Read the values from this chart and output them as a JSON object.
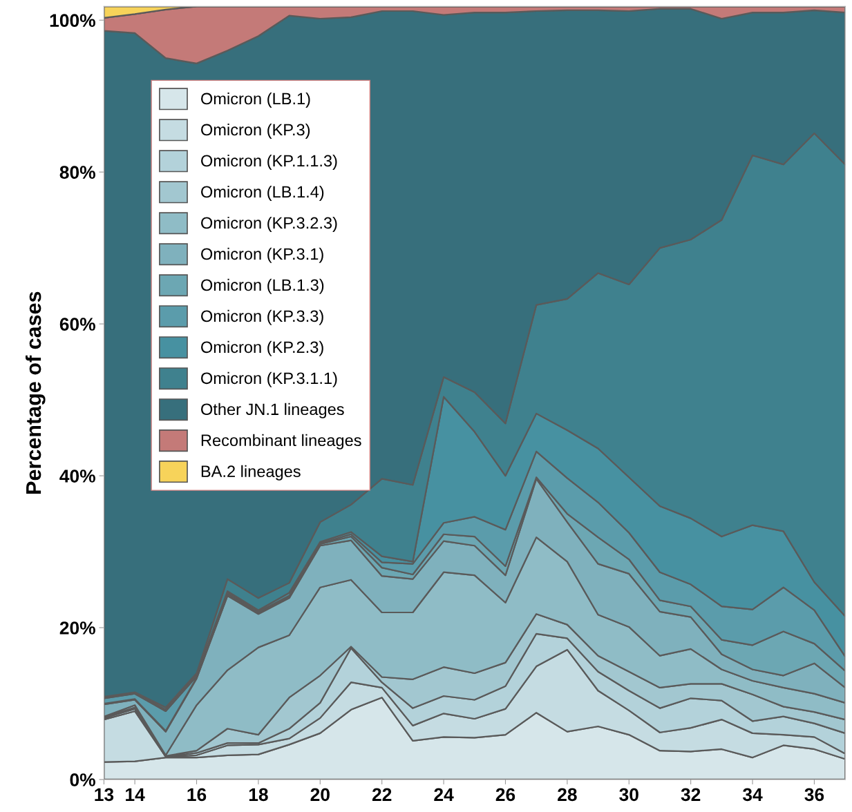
{
  "chart_data": {
    "type": "area",
    "stacked": true,
    "ylabel": "Percentage of cases",
    "x": [
      13,
      14,
      15,
      16,
      17,
      18,
      19,
      20,
      21,
      22,
      23,
      24,
      25,
      26,
      27,
      28,
      29,
      30,
      31,
      32,
      33,
      34,
      35,
      36,
      37
    ],
    "xlim": [
      13,
      37
    ],
    "xticks": [
      13,
      14,
      16,
      18,
      20,
      22,
      24,
      26,
      28,
      30,
      32,
      34,
      36
    ],
    "ylim": [
      0,
      101.8
    ],
    "yticks": [
      {
        "value": 0,
        "label": "0%"
      },
      {
        "value": 20,
        "label": "20%"
      },
      {
        "value": 40,
        "label": "40%"
      },
      {
        "value": 60,
        "label": "60%"
      },
      {
        "value": 80,
        "label": "80%"
      },
      {
        "value": 100,
        "label": "100%"
      }
    ],
    "grid": false,
    "legend": "top left",
    "series": [
      {
        "name": "Omicron (LB.1)",
        "color": "#d6e6ea",
        "values": [
          2.3,
          2.4,
          2.9,
          2.9,
          3.2,
          3.3,
          4.6,
          6.1,
          9.2,
          10.8,
          5.1,
          5.6,
          5.5,
          5.9,
          8.8,
          6.3,
          7.0,
          5.9,
          3.8,
          3.7,
          4.0,
          2.9,
          4.5,
          4.0,
          2.7
        ]
      },
      {
        "name": "Omicron (KP.3)",
        "color": "#c5dce2",
        "values": [
          5.6,
          6.6,
          0.1,
          0.3,
          1.3,
          1.3,
          0.8,
          2.0,
          3.6,
          1.3,
          2.0,
          3.1,
          2.5,
          3.4,
          6.1,
          10.8,
          4.7,
          3.2,
          2.4,
          3.1,
          3.9,
          3.2,
          1.4,
          1.6,
          0.7
        ]
      },
      {
        "name": "Omicron (KP.1.1.3)",
        "color": "#b3d2da",
        "values": [
          0.2,
          0.3,
          0.0,
          0.3,
          0.3,
          0.2,
          1.3,
          2.0,
          4.5,
          0.7,
          2.3,
          2.3,
          2.5,
          3.0,
          4.3,
          1.5,
          2.5,
          2.6,
          3.2,
          3.9,
          2.5,
          1.6,
          2.4,
          1.8,
          2.7
        ]
      },
      {
        "name": "Omicron (LB.1.4)",
        "color": "#a2c7d0",
        "values": [
          0.1,
          0.2,
          0.1,
          0.3,
          1.9,
          1.1,
          4.1,
          3.6,
          0.2,
          0.7,
          3.8,
          3.8,
          3.5,
          3.1,
          2.6,
          1.8,
          2.1,
          2.5,
          2.7,
          1.9,
          2.2,
          3.5,
          1.3,
          1.5,
          1.8
        ]
      },
      {
        "name": "Omicron (KP.3.2.3)",
        "color": "#8fbcc6",
        "values": [
          0.1,
          0.3,
          0.1,
          6.0,
          7.7,
          11.5,
          8.2,
          11.6,
          8.8,
          8.5,
          8.8,
          12.5,
          12.9,
          7.9,
          10.1,
          8.3,
          5.4,
          5.9,
          4.2,
          4.6,
          1.9,
          1.8,
          2.5,
          2.4,
          2.2
        ]
      },
      {
        "name": "Omicron (KP.3.1)",
        "color": "#7fb1bd",
        "values": [
          1.6,
          0.7,
          3.1,
          3.5,
          9.8,
          4.4,
          4.9,
          5.5,
          5.2,
          4.8,
          4.4,
          4.1,
          3.9,
          3.6,
          7.7,
          5.2,
          6.7,
          7.0,
          5.8,
          4.2,
          2.0,
          1.5,
          1.6,
          4.0,
          2.0
        ]
      },
      {
        "name": "Omicron (LB.1.3)",
        "color": "#6ca7b3",
        "values": [
          0.1,
          0.1,
          0.1,
          0.1,
          0.2,
          0.2,
          0.2,
          0.2,
          0.5,
          1.1,
          0.6,
          0.9,
          1.2,
          1.2,
          0.2,
          1.1,
          3.5,
          1.9,
          1.5,
          1.4,
          1.9,
          3.2,
          5.8,
          2.6,
          2.2
        ]
      },
      {
        "name": "Omicron (KP.3.3)",
        "color": "#5b9cab",
        "values": [
          0.7,
          0.7,
          2.6,
          0.2,
          0.2,
          0.1,
          0.1,
          0.1,
          0.3,
          0.7,
          1.4,
          1.5,
          2.6,
          4.8,
          3.4,
          4.7,
          4.6,
          3.5,
          3.7,
          2.9,
          4.4,
          4.7,
          5.8,
          4.4,
          1.9
        ]
      },
      {
        "name": "Omicron (KP.2.3)",
        "color": "#4791a1",
        "values": [
          0.1,
          0.1,
          0.2,
          0.2,
          0.2,
          0.2,
          0.4,
          0.2,
          0.3,
          0.8,
          0.3,
          16.6,
          11.2,
          7.1,
          5.0,
          6.3,
          7.1,
          7.3,
          8.7,
          8.7,
          9.2,
          11.1,
          7.4,
          3.7,
          5.3
        ]
      },
      {
        "name": "Omicron (KP.3.1.1)",
        "color": "#3f818e",
        "values": [
          0.1,
          0.1,
          0.3,
          0.2,
          1.6,
          1.6,
          1.3,
          2.6,
          3.6,
          10.2,
          10.1,
          2.6,
          5.2,
          6.9,
          14.3,
          17.3,
          23.1,
          25.4,
          34.0,
          36.7,
          41.7,
          48.7,
          48.3,
          59.1,
          59.5
        ]
      },
      {
        "name": "Other JN.1 lineages",
        "color": "#376f7c",
        "values": [
          87.7,
          86.8,
          85.5,
          80.3,
          69.6,
          74.0,
          74.7,
          66.3,
          64.2,
          61.6,
          62.4,
          47.7,
          50.0,
          54.1,
          38.7,
          38.0,
          34.6,
          36.0,
          31.5,
          30.4,
          26.5,
          18.8,
          20.0,
          16.2,
          20.0
        ]
      },
      {
        "name": "Recombinant lineages",
        "color": "#c47a78",
        "values": [
          1.7,
          2.5,
          6.4,
          7.5,
          5.8,
          3.9,
          1.2,
          1.6,
          1.4,
          0.6,
          0.6,
          1.1,
          0.8,
          0.8,
          0.6,
          0.5,
          0.5,
          0.6,
          0.3,
          0.3,
          1.6,
          0.8,
          0.8,
          0.5,
          0.8
        ]
      },
      {
        "name": "BA.2 lineages",
        "color": "#f7d35a",
        "values": [
          1.5,
          1.0,
          0.4,
          0,
          0,
          0,
          0,
          0,
          0,
          0,
          0,
          0,
          0,
          0,
          0,
          0,
          0,
          0,
          0,
          0,
          0,
          0,
          0,
          0,
          0
        ]
      }
    ]
  }
}
